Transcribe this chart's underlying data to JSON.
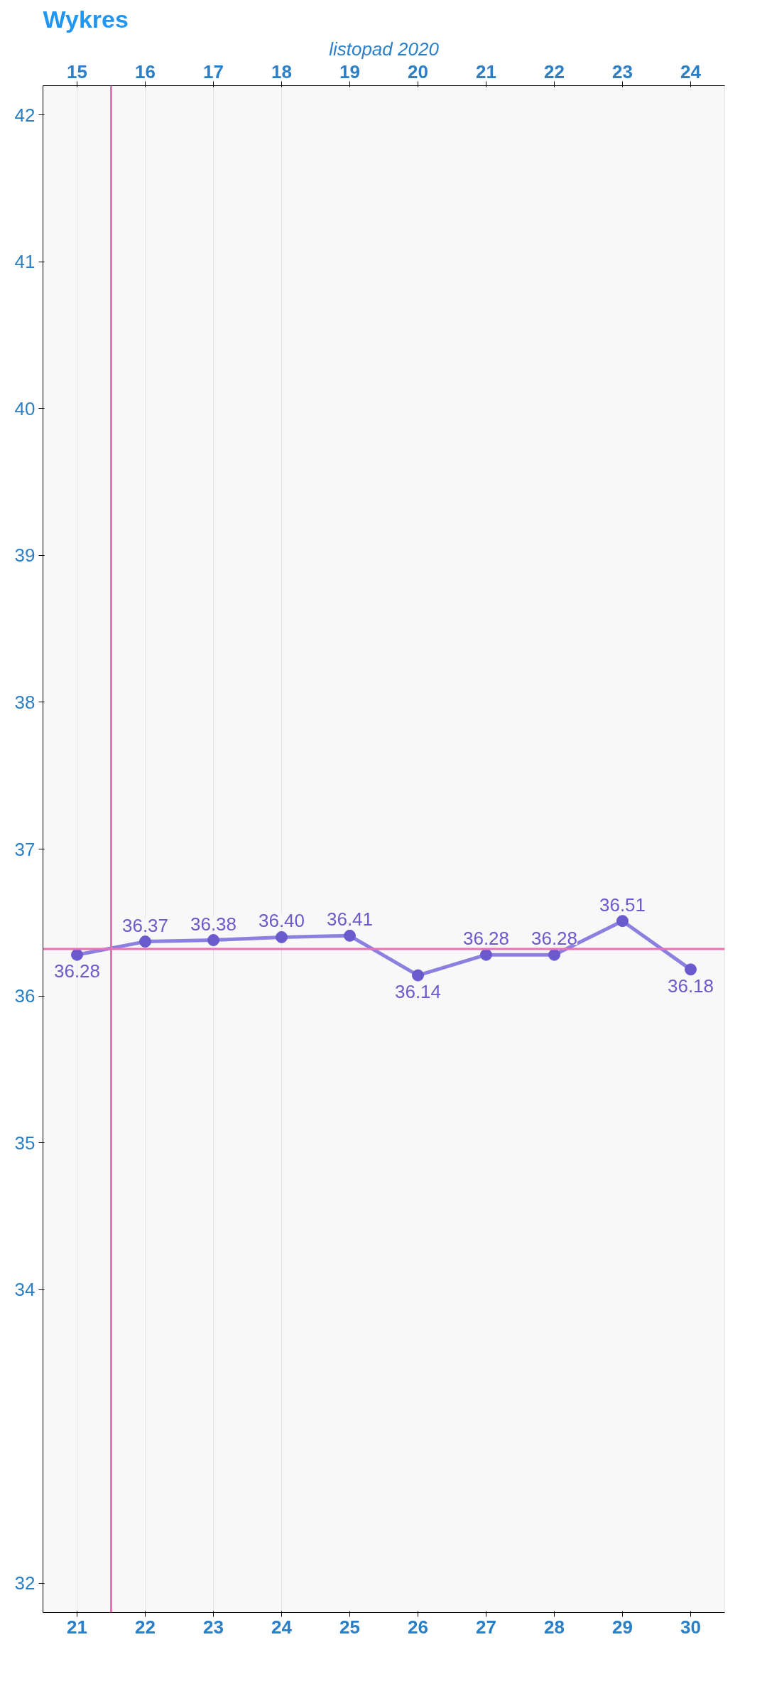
{
  "chart_data": {
    "type": "line",
    "title": "Wykres",
    "x2label": "listopad 2020",
    "x": [
      21,
      22,
      23,
      24,
      25,
      26,
      27,
      28,
      29,
      30
    ],
    "series": [
      {
        "color": "#8b7fe0",
        "values": [
          36.28,
          36.37,
          36.38,
          36.4,
          36.41,
          36.14,
          36.28,
          36.28,
          36.51,
          36.18
        ],
        "value_labels": [
          "36.28",
          "36.37",
          "36.38",
          "36.40",
          "36.41",
          "36.14",
          "36.28",
          "36.28",
          "36.51",
          "36.18"
        ]
      }
    ],
    "xlim": [
      20.5,
      30.5
    ],
    "xticks": [
      21,
      22,
      23,
      24,
      25,
      26,
      27,
      28,
      29,
      30
    ],
    "x2lim": [
      14.5,
      24.5
    ],
    "x2ticks": [
      15,
      16,
      17,
      18,
      19,
      20,
      21,
      22,
      23,
      24
    ],
    "ylim": [
      31.8,
      42.2
    ],
    "yticks": [
      32,
      34,
      35,
      36,
      37,
      38,
      39,
      40,
      41,
      42
    ],
    "ref_lines": [
      {
        "axis": "y",
        "value": 36.32,
        "color": "#f06eb4"
      },
      {
        "axis": "x",
        "value": 21.5,
        "color": "#f06eb4"
      }
    ],
    "marker": "circle",
    "line_style": "solid",
    "grid": "x"
  }
}
